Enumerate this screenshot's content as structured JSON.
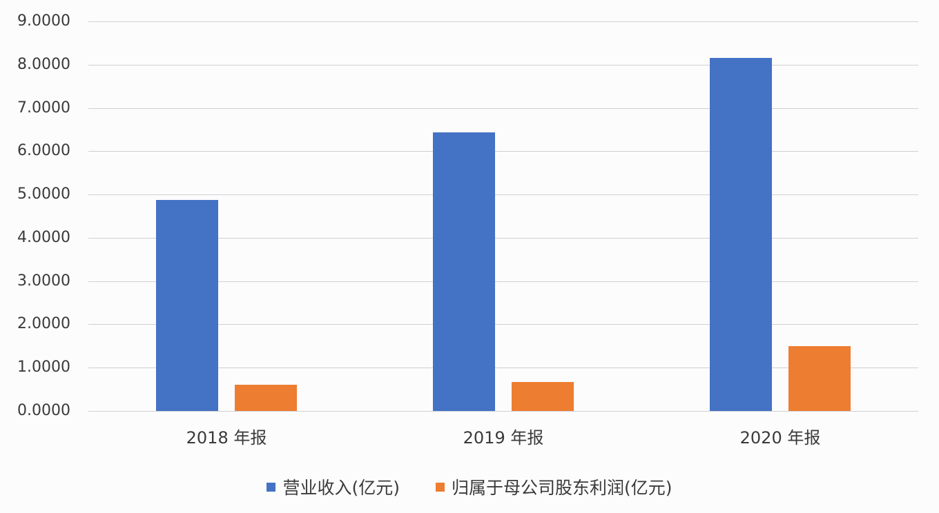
{
  "chart_data": {
    "type": "bar",
    "title": "",
    "xlabel": "",
    "ylabel": "",
    "categories": [
      "2018 年报",
      "2019 年报",
      "2020 年报"
    ],
    "series": [
      {
        "name": "营业收入(亿元)",
        "color": "#4472c4",
        "values": [
          4.88,
          6.43,
          8.15
        ]
      },
      {
        "name": "归属于母公司股东利润(亿元)",
        "color": "#ed7d31",
        "values": [
          0.61,
          0.67,
          1.5
        ]
      }
    ],
    "ylim": [
      0,
      9
    ],
    "yticks": [
      "0.0000",
      "1.0000",
      "2.0000",
      "3.0000",
      "4.0000",
      "5.0000",
      "6.0000",
      "7.0000",
      "8.0000",
      "9.0000"
    ],
    "grid": true,
    "legend_position": "bottom"
  },
  "axis": {
    "y_labels": [
      "9.0000",
      "8.0000",
      "7.0000",
      "6.0000",
      "5.0000",
      "4.0000",
      "3.0000",
      "2.0000",
      "1.0000",
      "0.0000"
    ],
    "x_labels": [
      "2018 年报",
      "2019 年报",
      "2020 年报"
    ]
  },
  "legend": {
    "items": [
      {
        "label": "营业收入(亿元)",
        "color": "#4472c4"
      },
      {
        "label": "归属于母公司股东利润(亿元)",
        "color": "#ed7d31"
      }
    ]
  }
}
